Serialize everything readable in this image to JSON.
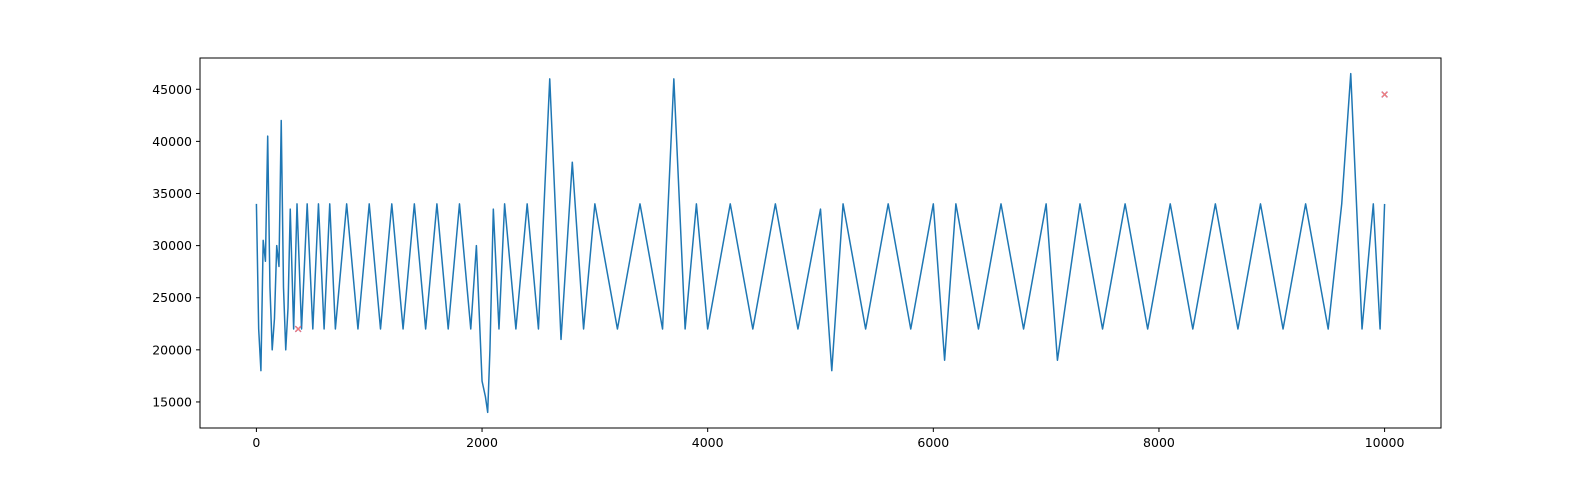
{
  "chart_data": {
    "type": "line",
    "title": "",
    "xlabel": "",
    "ylabel": "",
    "xlim": [
      -500,
      10500
    ],
    "ylim": [
      12500,
      48000
    ],
    "x_ticks": [
      0,
      2000,
      4000,
      6000,
      8000,
      10000
    ],
    "x_tick_labels": [
      "0",
      "2000",
      "4000",
      "6000",
      "8000",
      "10000"
    ],
    "y_ticks": [
      15000,
      20000,
      25000,
      30000,
      35000,
      40000,
      45000
    ],
    "y_tick_labels": [
      "15000",
      "20000",
      "25000",
      "30000",
      "35000",
      "40000",
      "45000"
    ],
    "grid": false,
    "legend": "none",
    "series": [
      {
        "kind": "line",
        "color": "#1f77b4",
        "x": [
          0,
          20,
          40,
          60,
          80,
          100,
          120,
          140,
          160,
          180,
          200,
          220,
          240,
          260,
          280,
          300,
          330,
          360,
          400,
          450,
          500,
          550,
          600,
          650,
          700,
          800,
          900,
          1000,
          1100,
          1200,
          1300,
          1400,
          1500,
          1600,
          1700,
          1800,
          1900,
          1950,
          2000,
          2030,
          2050,
          2070,
          2100,
          2150,
          2200,
          2300,
          2400,
          2500,
          2600,
          2700,
          2800,
          2900,
          3000,
          3200,
          3400,
          3600,
          3700,
          3800,
          3900,
          4000,
          4200,
          4400,
          4600,
          4800,
          5000,
          5100,
          5200,
          5400,
          5600,
          5800,
          6000,
          6100,
          6200,
          6400,
          6600,
          6800,
          7000,
          7100,
          7300,
          7500,
          7700,
          7900,
          8100,
          8300,
          8500,
          8700,
          8900,
          9100,
          9300,
          9500,
          9620,
          9700,
          9800,
          9900,
          9960,
          10000
        ],
        "y": [
          34000,
          22000,
          18000,
          30500,
          28500,
          40500,
          26000,
          20000,
          23000,
          30000,
          28000,
          42000,
          26000,
          20000,
          24000,
          33500,
          22000,
          34000,
          22000,
          34000,
          22000,
          34000,
          22000,
          34000,
          22000,
          34000,
          22000,
          34000,
          22000,
          34000,
          22000,
          34000,
          22000,
          34000,
          22000,
          34000,
          22000,
          30000,
          17000,
          15500,
          14000,
          20000,
          33500,
          22000,
          34000,
          22000,
          34000,
          22000,
          46000,
          21000,
          38000,
          22000,
          34000,
          22000,
          34000,
          22000,
          46000,
          22000,
          34000,
          22000,
          34000,
          22000,
          34000,
          22000,
          33500,
          18000,
          34000,
          22000,
          34000,
          22000,
          34000,
          19000,
          34000,
          22000,
          34000,
          22000,
          34000,
          19000,
          34000,
          22000,
          34000,
          22000,
          34000,
          22000,
          34000,
          22000,
          34000,
          22000,
          34000,
          22000,
          34000,
          46500,
          22000,
          34000,
          22000,
          34000
        ]
      },
      {
        "kind": "scatter",
        "marker": "x",
        "color": "#0000ff",
        "x": [
          370,
          10000
        ],
        "y": [
          22000,
          44500
        ]
      },
      {
        "kind": "scatter",
        "marker": "x",
        "color": "#fa8072",
        "x": [
          370,
          10000
        ],
        "y": [
          22000,
          44500
        ]
      }
    ]
  }
}
